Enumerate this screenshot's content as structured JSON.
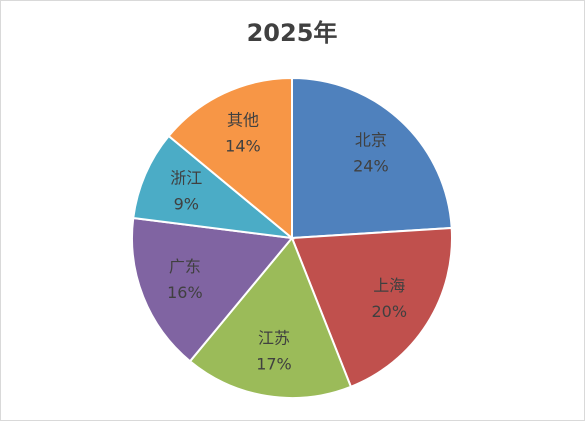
{
  "chart_data": {
    "type": "pie",
    "title": "2025年",
    "categories": [
      "北京",
      "上海",
      "江苏",
      "广东",
      "浙江",
      "其他"
    ],
    "values": [
      24,
      20,
      17,
      16,
      9,
      14
    ],
    "value_labels": [
      "24%",
      "20%",
      "17%",
      "16%",
      "9%",
      "14%"
    ],
    "colors": [
      "#4f81bd",
      "#c0504d",
      "#9bbb59",
      "#8064a2",
      "#4bacc6",
      "#f79646"
    ]
  }
}
